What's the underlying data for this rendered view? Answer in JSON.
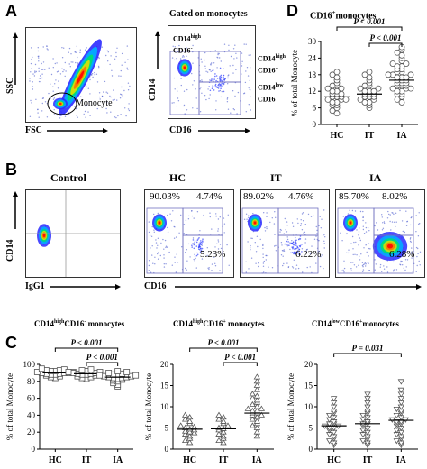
{
  "panelA": {
    "letter": "A",
    "gate_title": "Gated on monocytes",
    "ssc": "SSC",
    "fsc": "FSC",
    "monocyte": "Monocyte",
    "cd14": "CD14",
    "cd16": "CD16",
    "gate1_line1": "CD14",
    "gate1_sup1": "high",
    "gate1_line2": "CD16",
    "gate1_sup2": "-",
    "gate2_line1": "CD14",
    "gate2_sup1": "high",
    "gate2_line2": "CD16",
    "gate2_sup2": "+",
    "gate3_line1": "CD14",
    "gate3_sup1": "low",
    "gate3_line2": "CD16",
    "gate3_sup2": "+"
  },
  "panelB": {
    "letter": "B",
    "control": "Control",
    "hc": "HC",
    "it": "IT",
    "ia": "IA",
    "cd14": "CD14",
    "igg1": "IgG1",
    "cd16": "CD16",
    "hc_pcts": [
      "90.03%",
      "4.74%",
      "5.23%"
    ],
    "it_pcts": [
      "89.02%",
      "4.76%",
      "6.22%"
    ],
    "ia_pcts": [
      "85.70%",
      "8.02%",
      "6.28%"
    ]
  },
  "panelC": {
    "letter": "C",
    "charts": [
      {
        "title_a": "CD14",
        "title_sup1": "high",
        "title_b": "CD16",
        "title_sup2": "-",
        "title_c": " monocytes",
        "p1": "P < 0.001",
        "p2": "P < 0.001"
      },
      {
        "title_a": "CD14",
        "title_sup1": "high",
        "title_b": "CD16",
        "title_sup2": "+",
        "title_c": " monocytes",
        "p1": "P < 0.001",
        "p2": "P < 0.001"
      },
      {
        "title_a": "CD14",
        "title_sup1": "low",
        "title_b": "CD16",
        "title_sup2": "+",
        "title_c": "monocytes",
        "p1": "P = 0.031"
      }
    ]
  },
  "panelD": {
    "letter": "D",
    "title_a": "CD16",
    "title_sup": "+",
    "title_b": "monocytes",
    "p1": "P < 0.001",
    "p2": "P < 0.001"
  },
  "ylabel": "% of total Monocyte",
  "chart_data": [
    {
      "type": "scatter",
      "title": "CD16+monocytes",
      "categories": [
        "HC",
        "IT",
        "IA"
      ],
      "ylabel": "% of total Monocyte",
      "ylim": [
        0,
        30
      ],
      "yticks": [
        0,
        6,
        12,
        18,
        24,
        30
      ],
      "medians": [
        10,
        11,
        16
      ],
      "series": [
        {
          "values": [
            4,
            5,
            6,
            7,
            7,
            8,
            8,
            9,
            9,
            9,
            10,
            10,
            10,
            11,
            11,
            11,
            12,
            12,
            13,
            13,
            14,
            14,
            15,
            16,
            17,
            18,
            19
          ]
        },
        {
          "values": [
            6,
            7,
            8,
            8,
            9,
            9,
            10,
            10,
            10,
            11,
            11,
            11,
            12,
            12,
            12,
            13,
            13,
            14,
            14,
            15,
            16,
            17,
            18,
            19
          ]
        },
        {
          "values": [
            8,
            9,
            10,
            11,
            11,
            12,
            12,
            13,
            13,
            13,
            14,
            14,
            14,
            15,
            15,
            15,
            16,
            16,
            16,
            17,
            17,
            17,
            18,
            18,
            18,
            19,
            19,
            20,
            20,
            21,
            21,
            22,
            22,
            23,
            24,
            25,
            26,
            27,
            28
          ]
        }
      ]
    },
    {
      "type": "scatter",
      "title": "CD14highCD16- monocytes",
      "categories": [
        "HC",
        "IT",
        "IA"
      ],
      "ylabel": "% of total Monocyte",
      "ylim": [
        0,
        100
      ],
      "yticks": [
        0,
        20,
        40,
        60,
        80,
        100
      ],
      "medians": [
        90,
        89,
        85
      ],
      "series": [
        {
          "values": [
            84,
            85,
            86,
            87,
            88,
            88,
            89,
            89,
            90,
            90,
            90,
            91,
            91,
            92,
            92,
            93,
            93,
            94,
            95
          ]
        },
        {
          "values": [
            83,
            84,
            85,
            86,
            87,
            88,
            88,
            89,
            89,
            90,
            90,
            91,
            91,
            92,
            93,
            94
          ]
        },
        {
          "values": [
            74,
            76,
            78,
            80,
            81,
            82,
            83,
            84,
            84,
            85,
            85,
            86,
            86,
            87,
            87,
            88,
            88,
            89,
            90,
            91,
            92
          ]
        }
      ]
    },
    {
      "type": "scatter",
      "title": "CD14highCD16+ monocytes",
      "categories": [
        "HC",
        "IT",
        "IA"
      ],
      "ylabel": "% of total Monocyte",
      "ylim": [
        0,
        20
      ],
      "yticks": [
        0,
        5,
        10,
        15,
        20
      ],
      "medians": [
        4.7,
        4.8,
        8.5
      ],
      "series": [
        {
          "values": [
            1.5,
            2,
            2.5,
            3,
            3.5,
            3.8,
            4,
            4.2,
            4.5,
            4.7,
            5,
            5.2,
            5.5,
            6,
            6.5,
            7,
            7.5,
            8
          ]
        },
        {
          "values": [
            1.5,
            2,
            2.5,
            3,
            3.5,
            4,
            4.5,
            4.8,
            5,
            5.5,
            6,
            6.5,
            7,
            7.5,
            8
          ]
        },
        {
          "values": [
            3,
            4,
            5,
            5.5,
            6,
            6.5,
            7,
            7.5,
            8,
            8,
            8.5,
            8.5,
            9,
            9,
            9.5,
            9.5,
            10,
            10.5,
            11,
            11.5,
            12,
            12.5,
            13,
            14,
            15,
            16,
            17
          ]
        }
      ]
    },
    {
      "type": "scatter",
      "title": "CD14lowCD16+monocytes",
      "categories": [
        "HC",
        "IT",
        "IA"
      ],
      "ylabel": "% of total Monocyte",
      "ylim": [
        0,
        20
      ],
      "yticks": [
        0,
        5,
        10,
        15,
        20
      ],
      "medians": [
        5.5,
        6,
        6.8
      ],
      "series": [
        {
          "values": [
            1,
            1.5,
            2,
            2.5,
            3,
            3.5,
            4,
            4.5,
            5,
            5,
            5.5,
            5.5,
            6,
            6,
            6.5,
            7,
            7.5,
            8,
            8.5,
            9,
            10,
            11,
            12
          ]
        },
        {
          "values": [
            1,
            1.5,
            2,
            2.5,
            3,
            3.5,
            4,
            4.5,
            5,
            5.5,
            6,
            6,
            6.5,
            7,
            7.5,
            8,
            8.5,
            9,
            10,
            11,
            12,
            13
          ]
        },
        {
          "values": [
            1,
            1.5,
            2,
            2.5,
            3,
            3.5,
            4,
            4.5,
            5,
            5.5,
            6,
            6,
            6.5,
            6.5,
            7,
            7,
            7.5,
            8,
            8.5,
            9,
            9.5,
            10,
            11,
            12,
            13,
            14,
            16
          ]
        }
      ]
    }
  ]
}
